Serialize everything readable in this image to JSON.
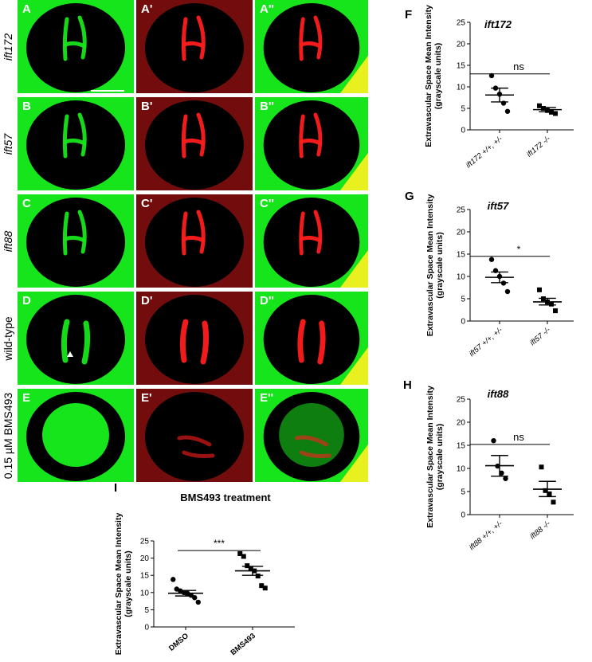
{
  "figure": {
    "row_labels": [
      "ift172",
      "ift57",
      "ift88",
      "wild-type",
      "0.15 µM BMS493"
    ],
    "panels": [
      {
        "row": 0,
        "col": 0,
        "label": "A",
        "channel": "green",
        "content": "vessels"
      },
      {
        "row": 0,
        "col": 1,
        "label": "A'",
        "channel": "red",
        "content": "vessels"
      },
      {
        "row": 0,
        "col": 2,
        "label": "A''",
        "channel": "merge",
        "content": "vessels"
      },
      {
        "row": 1,
        "col": 0,
        "label": "B",
        "channel": "green",
        "content": "vessels"
      },
      {
        "row": 1,
        "col": 1,
        "label": "B'",
        "channel": "red",
        "content": "vessels"
      },
      {
        "row": 1,
        "col": 2,
        "label": "B''",
        "channel": "merge",
        "content": "vessels"
      },
      {
        "row": 2,
        "col": 0,
        "label": "C",
        "channel": "green",
        "content": "vessels"
      },
      {
        "row": 2,
        "col": 1,
        "label": "C'",
        "channel": "red",
        "content": "vessels"
      },
      {
        "row": 2,
        "col": 2,
        "label": "C''",
        "channel": "merge",
        "content": "vessels"
      },
      {
        "row": 3,
        "col": 0,
        "label": "D",
        "channel": "green",
        "content": "wildtype",
        "arrowhead": true
      },
      {
        "row": 3,
        "col": 1,
        "label": "D'",
        "channel": "red",
        "content": "wildtype"
      },
      {
        "row": 3,
        "col": 2,
        "label": "D''",
        "channel": "merge",
        "content": "wildtype"
      },
      {
        "row": 4,
        "col": 0,
        "label": "E",
        "channel": "green",
        "content": "leak"
      },
      {
        "row": 4,
        "col": 1,
        "label": "E'",
        "channel": "red",
        "content": "leak"
      },
      {
        "row": 4,
        "col": 2,
        "label": "E''",
        "channel": "merge",
        "content": "leak"
      }
    ],
    "colors": {
      "green": "#17e51b",
      "red": "#ff1c1c",
      "merge_yellow": "#e8f020",
      "background": "#000000"
    }
  },
  "chart_data": [
    {
      "id": "F",
      "letter": "F",
      "type": "scatter",
      "title": "ift172",
      "ylabel": "Extravascular Space Mean Intensity (grayscale units)",
      "ylabel_lines": [
        "Extravascular Space Mean Intensity",
        "(grayscale units)"
      ],
      "ylim": [
        0,
        25
      ],
      "yticks": [
        0,
        5,
        10,
        15,
        20,
        25
      ],
      "categories": [
        "ift172 +/+, +/-",
        "ift172 -/-"
      ],
      "series": [
        {
          "marker": "circle",
          "values": [
            12.6,
            9.7,
            8.3,
            6.2,
            4.3
          ],
          "mean": 8.1,
          "sem_low": 6.5,
          "sem_high": 9.7
        },
        {
          "marker": "square",
          "values": [
            5.6,
            5.0,
            4.5,
            4.1,
            3.8
          ],
          "mean": 4.7,
          "sem_low": 4.2,
          "sem_high": 5.2
        }
      ],
      "significance": "ns",
      "sig_y": 13
    },
    {
      "id": "G",
      "letter": "G",
      "type": "scatter",
      "title": "ift57",
      "ylabel": "Extravascular Space Mean Intensity (grayscale units)",
      "ylabel_lines": [
        "Extravascular Space Mean Intensity",
        "(grayscale units)"
      ],
      "ylim": [
        0,
        25
      ],
      "yticks": [
        0,
        5,
        10,
        15,
        20,
        25
      ],
      "categories": [
        "ift57 +/+, +/-",
        "ift57 -/-"
      ],
      "series": [
        {
          "marker": "circle",
          "values": [
            13.8,
            11.3,
            10.0,
            8.5,
            6.6
          ],
          "mean": 9.8,
          "sem_low": 8.6,
          "sem_high": 11.0
        },
        {
          "marker": "square",
          "values": [
            7.0,
            5.0,
            4.3,
            3.8,
            2.3
          ],
          "mean": 4.3,
          "sem_low": 3.6,
          "sem_high": 5.1
        }
      ],
      "significance": "*",
      "sig_y": 14.5
    },
    {
      "id": "H",
      "letter": "H",
      "type": "scatter",
      "title": "ift88",
      "ylabel": "Extravascular Space Mean Intensity (grayscale units)",
      "ylabel_lines": [
        "Extravascular Space Mean Intensity",
        "(grayscale units)"
      ],
      "ylim": [
        0,
        25
      ],
      "yticks": [
        0,
        5,
        10,
        15,
        20,
        25
      ],
      "categories": [
        "ift88 +/+, +/-",
        "ift88 -/-"
      ],
      "series": [
        {
          "marker": "circle",
          "values": [
            16.0,
            10.5,
            9.0,
            7.8
          ],
          "mean": 10.6,
          "sem_low": 8.3,
          "sem_high": 12.8
        },
        {
          "marker": "square",
          "values": [
            10.3,
            5.2,
            4.5,
            2.7
          ],
          "mean": 5.5,
          "sem_low": 3.9,
          "sem_high": 7.2
        }
      ],
      "significance": "ns",
      "sig_y": 15.2
    },
    {
      "id": "I",
      "letter": "I",
      "type": "scatter",
      "title": "BMS493 treatment",
      "ylabel": "Extravascular Space Mean Intensity (grayscale units)",
      "ylabel_lines": [
        "Extravascular Space Mean Intensity",
        "(grayscale units)"
      ],
      "ylim": [
        0,
        25
      ],
      "yticks": [
        0,
        5,
        10,
        15,
        20,
        25
      ],
      "categories": [
        "DMSO",
        "BMS493"
      ],
      "series": [
        {
          "marker": "circle",
          "values": [
            13.8,
            11.0,
            10.5,
            10.0,
            9.8,
            9.2,
            8.5,
            7.2
          ],
          "mean": 9.8,
          "sem_low": 9.0,
          "sem_high": 10.6
        },
        {
          "marker": "square",
          "values": [
            21.3,
            20.5,
            17.8,
            17.0,
            16.3,
            14.8,
            12.0,
            11.3
          ],
          "mean": 16.3,
          "sem_low": 15.0,
          "sem_high": 17.6
        }
      ],
      "significance": "***",
      "sig_y": 22.2
    }
  ]
}
